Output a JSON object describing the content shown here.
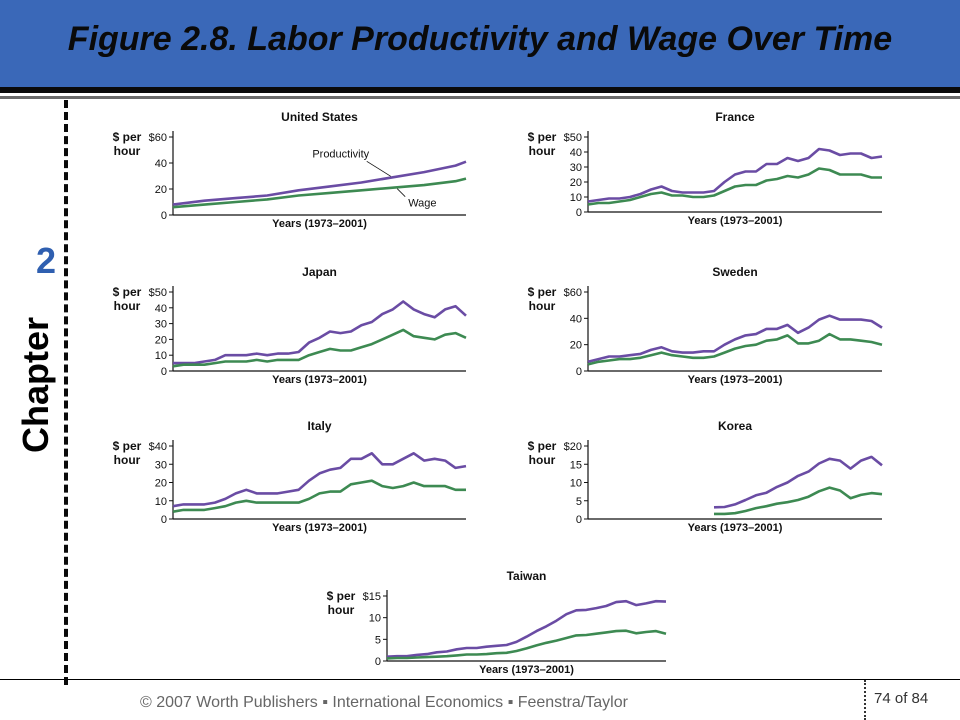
{
  "slide": {
    "title": "Figure 2.8. Labor Productivity and Wage Over Time",
    "chapter_label": "Chapter",
    "chapter_number": "2",
    "footer": "© 2007 Worth Publishers ▪ International Economics ▪ Feenstra/Taylor",
    "page": "74 of 84"
  },
  "colors": {
    "title_bar": "#3a68b8",
    "productivity": "#6a4ca4",
    "wage": "#3d8a52"
  },
  "chart_data": [
    {
      "type": "line",
      "title": "United States",
      "ylabel": "$ per hour",
      "xlabel": "Years (1973–2001)",
      "ylim": [
        0,
        60
      ],
      "yticks": [
        "0",
        "20",
        "40",
        "$60"
      ],
      "tick_values": [
        0,
        20,
        40,
        60
      ],
      "x": [
        1973,
        1976,
        1979,
        1982,
        1985,
        1988,
        1991,
        1994,
        1997,
        2000,
        2001
      ],
      "series": [
        {
          "name": "Productivity",
          "values": [
            8,
            11,
            13,
            15,
            19,
            22,
            25,
            29,
            33,
            38,
            41
          ]
        },
        {
          "name": "Wage",
          "values": [
            6,
            8,
            10,
            12,
            15,
            17,
            19,
            21,
            23,
            26,
            28
          ]
        }
      ],
      "annotations": [
        {
          "text": "Productivity",
          "series": "Productivity"
        },
        {
          "text": "Wage",
          "series": "Wage"
        }
      ]
    },
    {
      "type": "line",
      "title": "France",
      "ylabel": "$ per hour",
      "xlabel": "Years (1973–2001)",
      "ylim": [
        0,
        50
      ],
      "yticks": [
        "0",
        "10",
        "20",
        "30",
        "40",
        "$50"
      ],
      "tick_values": [
        0,
        10,
        20,
        30,
        40,
        50
      ],
      "x": [
        1973,
        1974,
        1975,
        1976,
        1977,
        1978,
        1979,
        1980,
        1981,
        1982,
        1983,
        1984,
        1985,
        1986,
        1987,
        1988,
        1989,
        1990,
        1991,
        1992,
        1993,
        1994,
        1995,
        1996,
        1997,
        1998,
        1999,
        2000,
        2001
      ],
      "series": [
        {
          "name": "Productivity",
          "values": [
            7,
            8,
            9,
            9,
            10,
            12,
            15,
            17,
            14,
            13,
            13,
            13,
            14,
            20,
            25,
            27,
            27,
            32,
            32,
            36,
            34,
            36,
            42,
            41,
            38,
            39,
            39,
            36,
            37
          ]
        },
        {
          "name": "Wage",
          "values": [
            5,
            6,
            6,
            7,
            8,
            10,
            12,
            13,
            11,
            11,
            10,
            10,
            11,
            14,
            17,
            18,
            18,
            21,
            22,
            24,
            23,
            25,
            29,
            28,
            25,
            25,
            25,
            23,
            23
          ]
        }
      ]
    },
    {
      "type": "line",
      "title": "Japan",
      "ylabel": "$ per hour",
      "xlabel": "Years (1973–2001)",
      "ylim": [
        0,
        50
      ],
      "yticks": [
        "0",
        "10",
        "20",
        "30",
        "40",
        "$50"
      ],
      "tick_values": [
        0,
        10,
        20,
        30,
        40,
        50
      ],
      "x": [
        1973,
        1974,
        1975,
        1976,
        1977,
        1978,
        1979,
        1980,
        1981,
        1982,
        1983,
        1984,
        1985,
        1986,
        1987,
        1988,
        1989,
        1990,
        1991,
        1992,
        1993,
        1994,
        1995,
        1996,
        1997,
        1998,
        1999,
        2000,
        2001
      ],
      "series": [
        {
          "name": "Productivity",
          "values": [
            5,
            5,
            5,
            6,
            7,
            10,
            10,
            10,
            11,
            10,
            11,
            11,
            12,
            18,
            21,
            25,
            24,
            25,
            29,
            31,
            36,
            39,
            44,
            39,
            36,
            34,
            39,
            41,
            35
          ]
        },
        {
          "name": "Wage",
          "values": [
            3,
            4,
            4,
            4,
            5,
            6,
            6,
            6,
            7,
            6,
            7,
            7,
            7,
            10,
            12,
            14,
            13,
            13,
            15,
            17,
            20,
            23,
            26,
            22,
            21,
            20,
            23,
            24,
            21
          ]
        }
      ]
    },
    {
      "type": "line",
      "title": "Sweden",
      "ylabel": "$ per hour",
      "xlabel": "Years (1973–2001)",
      "ylim": [
        0,
        60
      ],
      "yticks": [
        "0",
        "20",
        "40",
        "$60"
      ],
      "tick_values": [
        0,
        20,
        40,
        60
      ],
      "x": [
        1973,
        1974,
        1975,
        1976,
        1977,
        1978,
        1979,
        1980,
        1981,
        1982,
        1983,
        1984,
        1985,
        1986,
        1987,
        1988,
        1989,
        1990,
        1991,
        1992,
        1993,
        1994,
        1995,
        1996,
        1997,
        1998,
        1999,
        2000,
        2001
      ],
      "series": [
        {
          "name": "Productivity",
          "values": [
            7,
            9,
            11,
            11,
            12,
            13,
            16,
            18,
            15,
            14,
            14,
            15,
            15,
            20,
            24,
            27,
            28,
            32,
            32,
            35,
            29,
            33,
            39,
            42,
            39,
            39,
            39,
            38,
            33
          ]
        },
        {
          "name": "Wage",
          "values": [
            5,
            7,
            8,
            9,
            9,
            10,
            12,
            14,
            12,
            11,
            10,
            10,
            11,
            14,
            17,
            19,
            20,
            23,
            24,
            27,
            21,
            21,
            23,
            28,
            24,
            24,
            23,
            22,
            20
          ]
        }
      ]
    },
    {
      "type": "line",
      "title": "Italy",
      "ylabel": "$ per hour",
      "xlabel": "Years (1973–2001)",
      "ylim": [
        0,
        40
      ],
      "yticks": [
        "0",
        "10",
        "20",
        "30",
        "$40"
      ],
      "tick_values": [
        0,
        10,
        20,
        30,
        40
      ],
      "x": [
        1973,
        1974,
        1975,
        1976,
        1977,
        1978,
        1979,
        1980,
        1981,
        1982,
        1983,
        1984,
        1985,
        1986,
        1987,
        1988,
        1989,
        1990,
        1991,
        1992,
        1993,
        1994,
        1995,
        1996,
        1997,
        1998,
        1999,
        2000,
        2001
      ],
      "series": [
        {
          "name": "Productivity",
          "values": [
            7,
            8,
            8,
            8,
            9,
            11,
            14,
            16,
            14,
            14,
            14,
            15,
            16,
            21,
            25,
            27,
            28,
            33,
            33,
            36,
            30,
            30,
            33,
            36,
            32,
            33,
            32,
            28,
            29
          ]
        },
        {
          "name": "Wage",
          "values": [
            4,
            5,
            5,
            5,
            6,
            7,
            9,
            10,
            9,
            9,
            9,
            9,
            9,
            11,
            14,
            15,
            15,
            19,
            20,
            21,
            18,
            17,
            18,
            20,
            18,
            18,
            18,
            16,
            16
          ]
        }
      ]
    },
    {
      "type": "line",
      "title": "Korea",
      "ylabel": "$ per hour",
      "xlabel": "Years (1973–2001)",
      "ylim": [
        0,
        20
      ],
      "yticks": [
        "0",
        "5",
        "10",
        "15",
        "$20"
      ],
      "tick_values": [
        0,
        5,
        10,
        15,
        20
      ],
      "x": [
        1985,
        1986,
        1987,
        1988,
        1989,
        1990,
        1991,
        1992,
        1993,
        1994,
        1995,
        1996,
        1997,
        1998,
        1999,
        2000,
        2001
      ],
      "series": [
        {
          "name": "Productivity",
          "values": [
            3.2,
            3.3,
            4,
            5.2,
            6.5,
            7.2,
            8.8,
            10,
            11.8,
            13,
            15.2,
            16.5,
            16,
            13.8,
            16,
            17,
            14.7
          ]
        },
        {
          "name": "Wage",
          "values": [
            1.4,
            1.4,
            1.6,
            2.2,
            3,
            3.5,
            4.2,
            4.6,
            5.2,
            6.1,
            7.6,
            8.6,
            7.8,
            5.7,
            6.6,
            7.1,
            6.8
          ]
        }
      ]
    },
    {
      "type": "line",
      "title": "Taiwan",
      "ylabel": "$ per hour",
      "xlabel": "Years (1973–2001)",
      "ylim": [
        0,
        15
      ],
      "yticks": [
        "0",
        "5",
        "10",
        "$15"
      ],
      "tick_values": [
        0,
        5,
        10,
        15
      ],
      "x": [
        1973,
        1974,
        1975,
        1976,
        1977,
        1978,
        1979,
        1980,
        1981,
        1982,
        1983,
        1984,
        1985,
        1986,
        1987,
        1988,
        1989,
        1990,
        1991,
        1992,
        1993,
        1994,
        1995,
        1996,
        1997,
        1998,
        1999,
        2000,
        2001
      ],
      "series": [
        {
          "name": "Productivity",
          "values": [
            1,
            1.1,
            1.1,
            1.4,
            1.6,
            2,
            2.2,
            2.7,
            3,
            3,
            3.3,
            3.5,
            3.7,
            4.4,
            5.6,
            6.9,
            8,
            9.3,
            10.8,
            11.7,
            11.8,
            12.2,
            12.7,
            13.6,
            13.8,
            12.9,
            13.3,
            13.8,
            13.7
          ]
        },
        {
          "name": "Wage",
          "values": [
            0.6,
            0.7,
            0.7,
            0.8,
            0.9,
            1,
            1.1,
            1.3,
            1.5,
            1.5,
            1.6,
            1.8,
            1.9,
            2.3,
            2.9,
            3.6,
            4.2,
            4.7,
            5.3,
            5.9,
            6,
            6.3,
            6.6,
            6.9,
            7,
            6.4,
            6.7,
            6.9,
            6.3
          ]
        }
      ]
    }
  ]
}
